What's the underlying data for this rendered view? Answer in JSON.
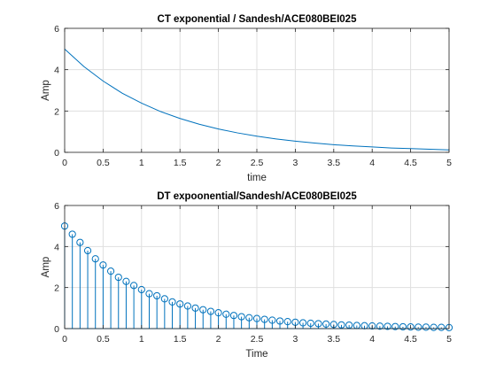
{
  "chart_data": [
    {
      "type": "line",
      "title": "CT exponential / Sandesh/ACE080BEI025",
      "xlabel": "time",
      "ylabel": "Amp",
      "xlim": [
        0,
        5
      ],
      "ylim": [
        0,
        6
      ],
      "xticks": [
        "0",
        "0.5",
        "1",
        "1.5",
        "2",
        "2.5",
        "3",
        "3.5",
        "4",
        "4.5",
        "5"
      ],
      "yticks": [
        "0",
        "2",
        "4",
        "6"
      ],
      "grid": true,
      "series": [
        {
          "color": "#0072BD",
          "x": [
            0,
            0.25,
            0.5,
            0.75,
            1.0,
            1.25,
            1.5,
            1.75,
            2.0,
            2.25,
            2.5,
            2.75,
            3.0,
            3.25,
            3.5,
            3.75,
            4.0,
            4.25,
            4.5,
            4.75,
            5.0
          ],
          "values": [
            5.0,
            4.15,
            3.45,
            2.86,
            2.38,
            1.97,
            1.64,
            1.36,
            1.13,
            0.94,
            0.78,
            0.65,
            0.54,
            0.45,
            0.37,
            0.31,
            0.26,
            0.21,
            0.18,
            0.15,
            0.12
          ]
        }
      ]
    },
    {
      "type": "stem",
      "title": "DT expoonential/Sandesh/ACE080BEI025",
      "xlabel": "Time",
      "ylabel": "Amp",
      "xlim": [
        0,
        5
      ],
      "ylim": [
        0,
        6
      ],
      "xticks": [
        "0",
        "0.5",
        "1",
        "1.5",
        "2",
        "2.5",
        "3",
        "3.5",
        "4",
        "4.5",
        "5"
      ],
      "yticks": [
        "0",
        "2",
        "4",
        "6"
      ],
      "grid": true,
      "series": [
        {
          "color": "#0072BD",
          "x": [
            0,
            0.1,
            0.2,
            0.3,
            0.4,
            0.5,
            0.6,
            0.7,
            0.8,
            0.9,
            1.0,
            1.1,
            1.2,
            1.3,
            1.4,
            1.5,
            1.6,
            1.7,
            1.8,
            1.9,
            2.0,
            2.1,
            2.2,
            2.3,
            2.4,
            2.5,
            2.6,
            2.7,
            2.8,
            2.9,
            3.0,
            3.1,
            3.2,
            3.3,
            3.4,
            3.5,
            3.6,
            3.7,
            3.8,
            3.9,
            4.0,
            4.1,
            4.2,
            4.3,
            4.4,
            4.5,
            4.6,
            4.7,
            4.8,
            4.9,
            5.0
          ],
          "values": [
            5.0,
            4.6,
            4.2,
            3.8,
            3.4,
            3.1,
            2.8,
            2.5,
            2.3,
            2.1,
            1.9,
            1.7,
            1.6,
            1.45,
            1.3,
            1.2,
            1.1,
            1.0,
            0.92,
            0.84,
            0.77,
            0.7,
            0.64,
            0.58,
            0.53,
            0.49,
            0.45,
            0.41,
            0.37,
            0.34,
            0.31,
            0.28,
            0.26,
            0.24,
            0.22,
            0.2,
            0.18,
            0.17,
            0.15,
            0.14,
            0.13,
            0.12,
            0.11,
            0.1,
            0.09,
            0.08,
            0.07,
            0.07,
            0.06,
            0.06,
            0.05
          ]
        }
      ]
    }
  ]
}
